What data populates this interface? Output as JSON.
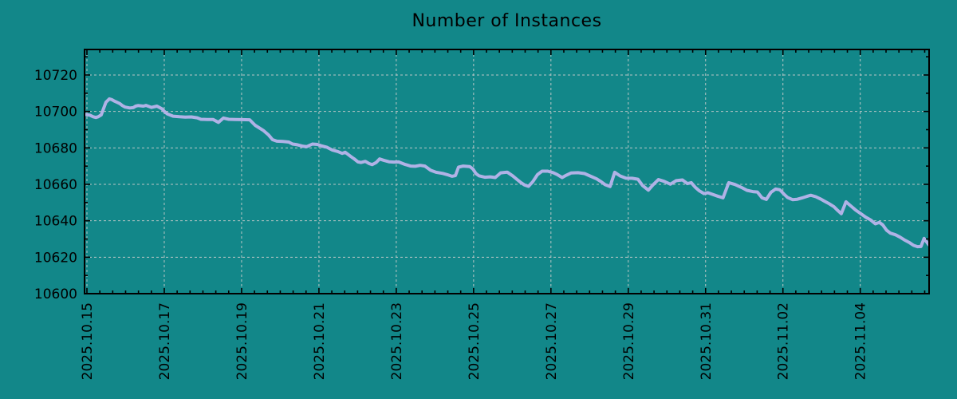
{
  "colors": {
    "background": "#128789",
    "line": "#b0b2e6",
    "grid": "#b9c6c5",
    "axis": "#000000",
    "text": "#000000"
  },
  "chart_data": {
    "type": "line",
    "title": "Number of Instances",
    "xlabel": "",
    "ylabel": "",
    "grid": true,
    "legend_position": "none",
    "x_tick_labels": [
      "2025.10.15",
      "2025.10.17",
      "2025.10.19",
      "2025.10.21",
      "2025.10.23",
      "2025.10.25",
      "2025.10.27",
      "2025.10.29",
      "2025.10.31",
      "2025.11.02",
      "2025.11.04"
    ],
    "x_tick_days": [
      0,
      2,
      4,
      6,
      8,
      10,
      12,
      14,
      16,
      18,
      20
    ],
    "x_minor_step_days": 0.33333,
    "y_ticks": [
      10600,
      10620,
      10640,
      10660,
      10680,
      10700,
      10720
    ],
    "y_minor_step": 10,
    "ylim": [
      10600,
      10734
    ],
    "xlim_days": [
      -0.062,
      21.78
    ],
    "series": [
      {
        "name": "Number of Instances",
        "points": [
          [
            -0.06,
            10698.4
          ],
          [
            0.08,
            10697.9
          ],
          [
            0.16,
            10697.1
          ],
          [
            0.23,
            10696.7
          ],
          [
            0.29,
            10697.1
          ],
          [
            0.37,
            10698.1
          ],
          [
            0.49,
            10705.0
          ],
          [
            0.58,
            10706.9
          ],
          [
            0.64,
            10706.5
          ],
          [
            0.7,
            10705.8
          ],
          [
            0.78,
            10705.0
          ],
          [
            0.85,
            10704.3
          ],
          [
            0.91,
            10703.3
          ],
          [
            0.99,
            10702.4
          ],
          [
            1.11,
            10701.9
          ],
          [
            1.2,
            10702.1
          ],
          [
            1.26,
            10702.9
          ],
          [
            1.32,
            10703.2
          ],
          [
            1.46,
            10702.9
          ],
          [
            1.53,
            10703.3
          ],
          [
            1.67,
            10702.2
          ],
          [
            1.81,
            10702.9
          ],
          [
            1.94,
            10701.4
          ],
          [
            2.0,
            10700.0
          ],
          [
            2.08,
            10698.6
          ],
          [
            2.23,
            10697.4
          ],
          [
            2.39,
            10697.1
          ],
          [
            2.54,
            10696.9
          ],
          [
            2.7,
            10697.0
          ],
          [
            2.85,
            10696.5
          ],
          [
            2.95,
            10695.7
          ],
          [
            3.11,
            10695.6
          ],
          [
            3.26,
            10695.6
          ],
          [
            3.4,
            10694.0
          ],
          [
            3.53,
            10696.4
          ],
          [
            3.67,
            10695.7
          ],
          [
            3.84,
            10695.6
          ],
          [
            4.0,
            10695.5
          ],
          [
            4.21,
            10695.4
          ],
          [
            4.35,
            10692.4
          ],
          [
            4.56,
            10689.6
          ],
          [
            4.7,
            10687.0
          ],
          [
            4.8,
            10684.5
          ],
          [
            4.91,
            10683.7
          ],
          [
            5.07,
            10683.5
          ],
          [
            5.22,
            10683.2
          ],
          [
            5.32,
            10682.1
          ],
          [
            5.44,
            10681.7
          ],
          [
            5.59,
            10680.9
          ],
          [
            5.69,
            10680.7
          ],
          [
            5.83,
            10682.1
          ],
          [
            5.96,
            10681.9
          ],
          [
            6.08,
            10681.0
          ],
          [
            6.21,
            10680.3
          ],
          [
            6.35,
            10678.8
          ],
          [
            6.49,
            10678.0
          ],
          [
            6.6,
            10677.0
          ],
          [
            6.68,
            10677.6
          ],
          [
            6.82,
            10675.3
          ],
          [
            6.91,
            10674.0
          ],
          [
            7.01,
            10672.3
          ],
          [
            7.09,
            10672.0
          ],
          [
            7.2,
            10672.6
          ],
          [
            7.3,
            10671.4
          ],
          [
            7.38,
            10670.8
          ],
          [
            7.48,
            10672.0
          ],
          [
            7.57,
            10673.9
          ],
          [
            7.67,
            10673.2
          ],
          [
            7.81,
            10672.4
          ],
          [
            7.94,
            10672.2
          ],
          [
            8.06,
            10672.3
          ],
          [
            8.23,
            10670.9
          ],
          [
            8.37,
            10670.0
          ],
          [
            8.49,
            10669.9
          ],
          [
            8.62,
            10670.4
          ],
          [
            8.74,
            10670.0
          ],
          [
            8.89,
            10667.7
          ],
          [
            9.03,
            10666.6
          ],
          [
            9.2,
            10666.0
          ],
          [
            9.32,
            10665.3
          ],
          [
            9.44,
            10664.4
          ],
          [
            9.53,
            10664.8
          ],
          [
            9.61,
            10669.4
          ],
          [
            9.73,
            10670.0
          ],
          [
            9.9,
            10669.7
          ],
          [
            9.98,
            10668.5
          ],
          [
            10.06,
            10665.9
          ],
          [
            10.14,
            10664.7
          ],
          [
            10.29,
            10663.9
          ],
          [
            10.43,
            10664.1
          ],
          [
            10.56,
            10663.7
          ],
          [
            10.7,
            10666.3
          ],
          [
            10.87,
            10666.7
          ],
          [
            11.01,
            10664.7
          ],
          [
            11.11,
            10662.9
          ],
          [
            11.22,
            10661.0
          ],
          [
            11.32,
            10659.6
          ],
          [
            11.42,
            10658.9
          ],
          [
            11.53,
            10661.4
          ],
          [
            11.65,
            10665.3
          ],
          [
            11.77,
            10667.2
          ],
          [
            11.92,
            10667.2
          ],
          [
            12.06,
            10666.4
          ],
          [
            12.16,
            10665.4
          ],
          [
            12.29,
            10663.7
          ],
          [
            12.39,
            10664.9
          ],
          [
            12.52,
            10666.2
          ],
          [
            12.7,
            10666.4
          ],
          [
            12.87,
            10665.9
          ],
          [
            13.01,
            10664.6
          ],
          [
            13.18,
            10663.0
          ],
          [
            13.3,
            10661.4
          ],
          [
            13.4,
            10659.8
          ],
          [
            13.53,
            10658.8
          ],
          [
            13.65,
            10666.6
          ],
          [
            13.79,
            10664.6
          ],
          [
            13.94,
            10663.4
          ],
          [
            14.1,
            10663.3
          ],
          [
            14.25,
            10662.8
          ],
          [
            14.37,
            10659.4
          ],
          [
            14.52,
            10656.8
          ],
          [
            14.64,
            10659.7
          ],
          [
            14.78,
            10662.6
          ],
          [
            14.93,
            10661.6
          ],
          [
            15.09,
            10660.1
          ],
          [
            15.24,
            10662.0
          ],
          [
            15.4,
            10662.4
          ],
          [
            15.53,
            10660.4
          ],
          [
            15.63,
            10660.9
          ],
          [
            15.73,
            10658.4
          ],
          [
            15.84,
            10656.4
          ],
          [
            15.96,
            10654.9
          ],
          [
            16.06,
            10655.4
          ],
          [
            16.19,
            10654.4
          ],
          [
            16.31,
            10653.5
          ],
          [
            16.45,
            10652.6
          ],
          [
            16.6,
            10660.9
          ],
          [
            16.76,
            10659.9
          ],
          [
            16.93,
            10658.3
          ],
          [
            17.07,
            10656.7
          ],
          [
            17.22,
            10656.0
          ],
          [
            17.34,
            10655.8
          ],
          [
            17.46,
            10652.6
          ],
          [
            17.57,
            10651.7
          ],
          [
            17.69,
            10655.6
          ],
          [
            17.81,
            10657.4
          ],
          [
            17.92,
            10657.0
          ],
          [
            18.02,
            10654.8
          ],
          [
            18.12,
            10652.8
          ],
          [
            18.25,
            10651.6
          ],
          [
            18.37,
            10651.8
          ],
          [
            18.49,
            10652.5
          ],
          [
            18.62,
            10653.4
          ],
          [
            18.72,
            10654.0
          ],
          [
            18.85,
            10653.2
          ],
          [
            18.97,
            10652.0
          ],
          [
            19.07,
            10650.8
          ],
          [
            19.2,
            10649.3
          ],
          [
            19.32,
            10647.7
          ],
          [
            19.42,
            10645.6
          ],
          [
            19.51,
            10643.9
          ],
          [
            19.63,
            10650.4
          ],
          [
            19.75,
            10648.2
          ],
          [
            19.88,
            10645.9
          ],
          [
            20.0,
            10644.1
          ],
          [
            20.14,
            10642.0
          ],
          [
            20.27,
            10640.4
          ],
          [
            20.39,
            10638.3
          ],
          [
            20.49,
            10639.1
          ],
          [
            20.58,
            10637.8
          ],
          [
            20.68,
            10634.8
          ],
          [
            20.78,
            10633.2
          ],
          [
            20.91,
            10632.3
          ],
          [
            21.03,
            10631.0
          ],
          [
            21.15,
            10629.4
          ],
          [
            21.28,
            10627.9
          ],
          [
            21.38,
            10626.5
          ],
          [
            21.48,
            10625.8
          ],
          [
            21.57,
            10625.9
          ],
          [
            21.65,
            10630.3
          ],
          [
            21.71,
            10628.6
          ],
          [
            21.77,
            10626.9
          ]
        ]
      }
    ]
  }
}
